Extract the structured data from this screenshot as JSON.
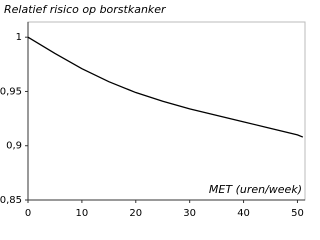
{
  "chart_data": {
    "type": "line",
    "title": "Relatief risico op borstkanker",
    "x_label": "MET (uren/week)",
    "x": [
      0,
      5,
      10,
      15,
      20,
      25,
      30,
      35,
      40,
      45,
      50,
      51
    ],
    "series": [
      {
        "color": "#000000",
        "values": [
          1.0,
          0.985,
          0.971,
          0.959,
          0.949,
          0.941,
          0.934,
          0.928,
          0.922,
          0.916,
          0.91,
          0.908
        ]
      }
    ],
    "xlim": [
      0,
      51.4
    ],
    "ylim": [
      0.85,
      1.014
    ],
    "xticks": [
      0,
      10,
      20,
      30,
      40,
      50
    ],
    "yticks": [
      {
        "value": 0.85,
        "label": "0,85"
      },
      {
        "value": 0.9,
        "label": "0,9"
      },
      {
        "value": 0.95,
        "label": "0,95"
      },
      {
        "value": 1,
        "label": "1"
      }
    ],
    "grid": false
  }
}
